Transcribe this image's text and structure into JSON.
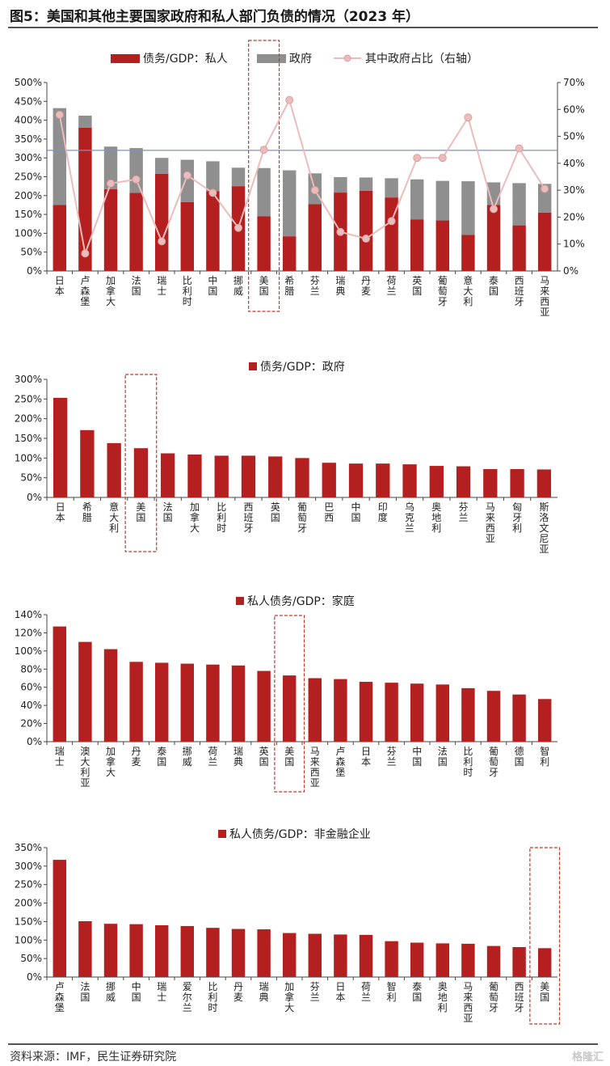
{
  "figure": {
    "title": "图5：美国和其他主要国家政府和私人部门负债的情况（2023 年）",
    "source": "资料来源：IMF，民生证券研究院",
    "watermark": "格隆汇"
  },
  "colors": {
    "red": "#b41f1f",
    "gray": "#8f8f8f",
    "line": "#ecbcbc",
    "ref_line": "#7b91c8",
    "highlight_box": "#c0392b"
  },
  "chart_data": [
    {
      "type": "bar",
      "stacked": true,
      "categories": [
        "日本",
        "卢森堡",
        "加拿大",
        "法国",
        "瑞士",
        "比利时",
        "中国",
        "挪威",
        "美国",
        "希腊",
        "芬兰",
        "瑞典",
        "丹麦",
        "荷兰",
        "英国",
        "葡萄牙",
        "意大利",
        "泰国",
        "西班牙",
        "马来西亚"
      ],
      "series": [
        {
          "name": "债务/GDP：私人",
          "type": "bar",
          "axis": "left",
          "values": [
            175,
            380,
            217,
            207,
            258,
            183,
            212,
            225,
            145,
            92,
            177,
            208,
            213,
            195,
            137,
            134,
            96,
            175,
            121,
            155
          ]
        },
        {
          "name": "政府",
          "type": "bar",
          "axis": "left",
          "values": [
            257,
            32,
            113,
            119,
            42,
            112,
            79,
            49,
            128,
            175,
            82,
            41,
            35,
            51,
            106,
            105,
            142,
            60,
            112,
            76
          ]
        },
        {
          "name": "其中政府占比（右轴）",
          "type": "line",
          "axis": "right",
          "values": [
            58,
            6.5,
            32.5,
            34,
            11,
            35.5,
            29,
            16,
            45,
            63.5,
            30,
            14.5,
            12,
            18.5,
            42,
            42,
            57,
            23,
            45.5,
            30.5
          ]
        }
      ],
      "reference_line": {
        "axis": "left",
        "value": 320
      },
      "ylim_left": [
        0,
        500
      ],
      "yticks_left": [
        "0%",
        "50%",
        "100%",
        "150%",
        "200%",
        "250%",
        "300%",
        "350%",
        "400%",
        "450%",
        "500%"
      ],
      "ylim_right": [
        0,
        70
      ],
      "yticks_right": [
        "0%",
        "10%",
        "20%",
        "30%",
        "40%",
        "50%",
        "60%",
        "70%"
      ],
      "highlight_category": "美国",
      "legend_position": "top"
    },
    {
      "type": "bar",
      "title": "债务/GDP：政府",
      "categories": [
        "日本",
        "希腊",
        "意大利",
        "美国",
        "法国",
        "加拿大",
        "比利时",
        "西班牙",
        "英国",
        "葡萄牙",
        "巴西",
        "中国",
        "印度",
        "乌克兰",
        "奥地利",
        "芬兰",
        "马来西亚",
        "匈牙利",
        "斯洛文尼亚"
      ],
      "values": [
        253,
        171,
        138,
        125,
        112,
        109,
        106,
        106,
        104,
        100,
        88,
        86,
        86,
        84,
        80,
        79,
        72,
        72,
        71
      ],
      "ylim": [
        0,
        300
      ],
      "yticks": [
        "0%",
        "50%",
        "100%",
        "150%",
        "200%",
        "250%",
        "300%"
      ],
      "highlight_category": "美国",
      "legend_position": "top"
    },
    {
      "type": "bar",
      "title": "私人债务/GDP：家庭",
      "categories": [
        "瑞士",
        "澳大利亚",
        "加拿大",
        "丹麦",
        "泰国",
        "挪威",
        "荷兰",
        "瑞典",
        "英国",
        "美国",
        "马来西亚",
        "卢森堡",
        "日本",
        "芬兰",
        "中国",
        "法国",
        "比利时",
        "葡萄牙",
        "德国",
        "智利"
      ],
      "values": [
        127,
        110,
        102,
        88,
        87,
        86,
        85,
        84,
        78,
        73,
        70,
        69,
        66,
        65,
        64,
        63,
        59,
        56,
        52,
        47
      ],
      "ylim": [
        0,
        140
      ],
      "yticks": [
        "0%",
        "20%",
        "40%",
        "60%",
        "80%",
        "100%",
        "120%",
        "140%"
      ],
      "highlight_category": "美国",
      "legend_position": "top"
    },
    {
      "type": "bar",
      "title": "私人债务/GDP：非金融企业",
      "categories": [
        "卢森堡",
        "法国",
        "挪威",
        "中国",
        "瑞士",
        "爱尔兰",
        "比利时",
        "丹麦",
        "瑞典",
        "加拿大",
        "芬兰",
        "日本",
        "荷兰",
        "智利",
        "泰国",
        "奥地利",
        "马来西亚",
        "葡萄牙",
        "西班牙",
        "美国"
      ],
      "values": [
        317,
        151,
        144,
        143,
        140,
        138,
        133,
        130,
        129,
        119,
        117,
        115,
        114,
        97,
        93,
        91,
        90,
        84,
        81,
        78
      ],
      "ylim": [
        0,
        350
      ],
      "yticks": [
        "0%",
        "50%",
        "100%",
        "150%",
        "200%",
        "250%",
        "300%",
        "350%"
      ],
      "highlight_category": "美国",
      "legend_position": "top"
    }
  ]
}
